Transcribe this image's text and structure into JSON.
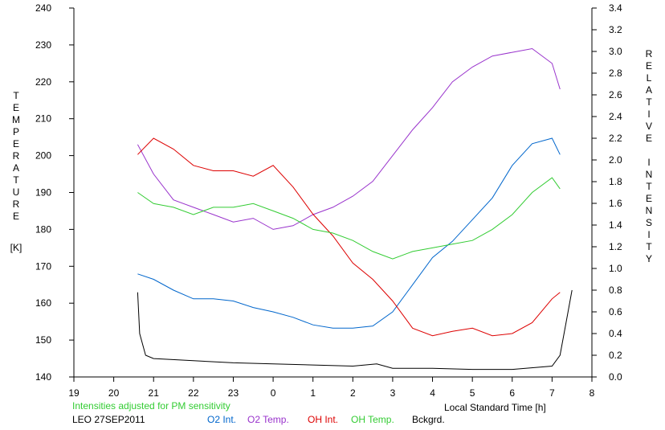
{
  "chart_data": {
    "type": "line",
    "xlabel": "Local Standard Time [h]",
    "ylabel_left": "TEMPERATURE",
    "ylabel_left_unit": "[K]",
    "ylabel_right": "RELATIVE INTENSITY",
    "x_ticks": [
      "19",
      "20",
      "21",
      "22",
      "23",
      "0",
      "1",
      "2",
      "3",
      "4",
      "5",
      "6",
      "7",
      "8"
    ],
    "x_range": [
      19,
      32
    ],
    "y_left_ticks": [
      140,
      150,
      160,
      170,
      180,
      190,
      200,
      210,
      220,
      230,
      240
    ],
    "y_left_range": [
      140,
      240
    ],
    "y_right_ticks": [
      "0.0",
      "0.2",
      "0.4",
      "0.6",
      "0.8",
      "1.0",
      "1.2",
      "1.4",
      "1.6",
      "1.8",
      "2.0",
      "2.2",
      "2.4",
      "2.6",
      "2.8",
      "3.0",
      "3.2",
      "3.4"
    ],
    "y_right_range": [
      0.0,
      3.4
    ],
    "note": "Intensities adjusted for PM sensitivity",
    "site_date": "LEO 27SEP2011",
    "series": [
      {
        "name": "O2 Int.",
        "color": "#0066cc",
        "axis": "right",
        "x": [
          20.6,
          21.0,
          21.5,
          22.0,
          22.5,
          23.0,
          23.5,
          24.0,
          24.5,
          25.0,
          25.5,
          26.0,
          26.5,
          27.0,
          27.5,
          28.0,
          28.5,
          29.0,
          29.5,
          30.0,
          30.5,
          31.0,
          31.2
        ],
        "y": [
          0.95,
          0.9,
          0.8,
          0.72,
          0.72,
          0.7,
          0.64,
          0.6,
          0.55,
          0.48,
          0.45,
          0.45,
          0.47,
          0.6,
          0.85,
          1.1,
          1.25,
          1.45,
          1.65,
          1.95,
          2.15,
          2.2,
          2.05
        ]
      },
      {
        "name": "O2 Temp.",
        "color": "#9933cc",
        "axis": "left",
        "x": [
          20.6,
          21.0,
          21.5,
          22.0,
          22.5,
          23.0,
          23.5,
          24.0,
          24.5,
          25.0,
          25.5,
          26.0,
          26.5,
          27.0,
          27.5,
          28.0,
          28.5,
          29.0,
          29.5,
          30.0,
          30.5,
          31.0,
          31.2
        ],
        "y": [
          203,
          195,
          188,
          186,
          184,
          182,
          183,
          180,
          181,
          184,
          186,
          189,
          193,
          200,
          207,
          213,
          220,
          224,
          227,
          228,
          229,
          225,
          218
        ]
      },
      {
        "name": "OH Int.",
        "color": "#dd0000",
        "axis": "right",
        "x": [
          20.6,
          21.0,
          21.5,
          22.0,
          22.5,
          23.0,
          23.5,
          24.0,
          24.5,
          25.0,
          25.5,
          26.0,
          26.5,
          27.0,
          27.5,
          28.0,
          28.5,
          29.0,
          29.5,
          30.0,
          30.5,
          31.0,
          31.2
        ],
        "y": [
          2.05,
          2.2,
          2.1,
          1.95,
          1.9,
          1.9,
          1.85,
          1.95,
          1.75,
          1.5,
          1.3,
          1.05,
          0.9,
          0.7,
          0.45,
          0.38,
          0.42,
          0.45,
          0.38,
          0.4,
          0.5,
          0.72,
          0.78
        ]
      },
      {
        "name": "OH Temp.",
        "color": "#33cc33",
        "axis": "left",
        "x": [
          20.6,
          21.0,
          21.5,
          22.0,
          22.5,
          23.0,
          23.5,
          24.0,
          24.5,
          25.0,
          25.5,
          26.0,
          26.5,
          27.0,
          27.5,
          28.0,
          28.5,
          29.0,
          29.5,
          30.0,
          30.5,
          31.0,
          31.2
        ],
        "y": [
          190,
          187,
          186,
          184,
          186,
          186,
          187,
          185,
          183,
          180,
          179,
          177,
          174,
          172,
          174,
          175,
          176,
          177,
          180,
          184,
          190,
          194,
          191
        ]
      },
      {
        "name": "Bckgrd.",
        "color": "#000000",
        "axis": "right",
        "x": [
          20.6,
          20.65,
          20.8,
          21.0,
          22.0,
          23.0,
          24.0,
          25.0,
          26.0,
          26.6,
          27.0,
          28.0,
          29.0,
          30.0,
          31.0,
          31.2,
          31.35,
          31.5
        ],
        "y": [
          0.78,
          0.4,
          0.2,
          0.17,
          0.15,
          0.13,
          0.12,
          0.11,
          0.1,
          0.12,
          0.08,
          0.08,
          0.07,
          0.07,
          0.1,
          0.2,
          0.5,
          0.8
        ]
      }
    ]
  }
}
